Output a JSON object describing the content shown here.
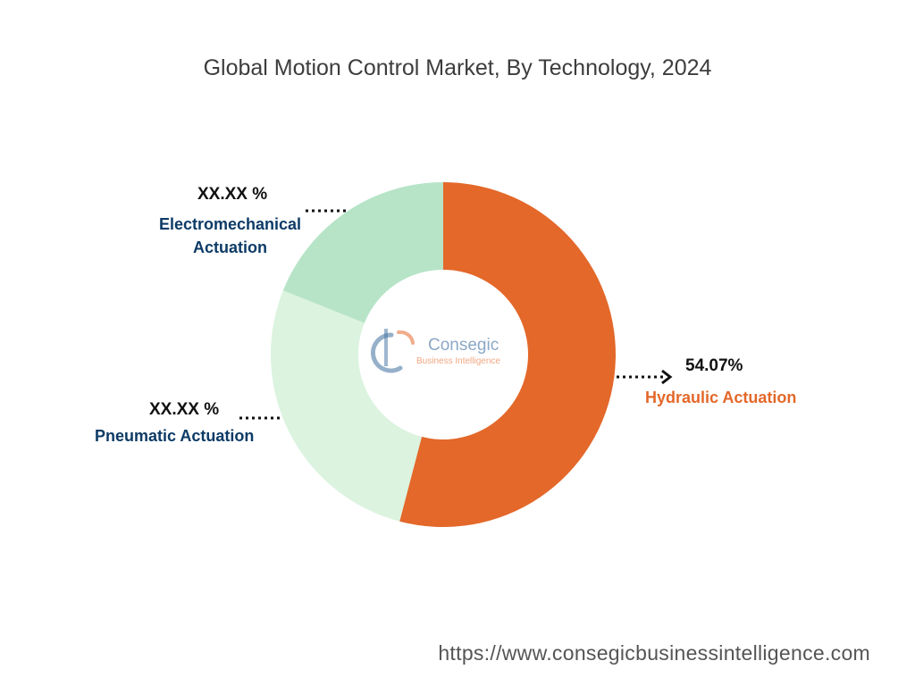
{
  "title": "Global Motion Control Market, By Technology, 2024",
  "watermark": {
    "brand": "Consegic",
    "tagline": "Business Intelligence",
    "colors": {
      "blue": "#3f6f9f",
      "orange": "#e56a2c"
    }
  },
  "url": "https://www.consegicbusinessintelligence.com",
  "chart_data": {
    "type": "pie",
    "hole": "donut",
    "title": "Global Motion Control Market, By Technology, 2024",
    "slices": [
      {
        "name": "Hydraulic Actuation",
        "value": 54.07,
        "label": "54.07%",
        "color": "#e3682a",
        "label_color": "#e3682a"
      },
      {
        "name": "Pneumatic Actuation",
        "value": 27.0,
        "label": "XX.XX %",
        "color": "#dbf3df",
        "label_color": "#0d3b66"
      },
      {
        "name": "Electromechanical Actuation",
        "value": 18.93,
        "label": "XX.XX %",
        "color": "#b7e4c7",
        "label_color": "#0d3b66"
      }
    ]
  }
}
